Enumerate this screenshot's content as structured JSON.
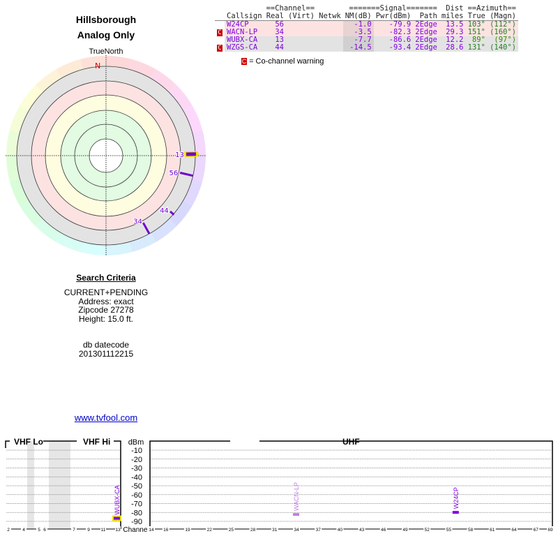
{
  "header": {
    "title": "Hillsborough",
    "subtitle": "Analog Only"
  },
  "polar": {
    "north_label": "TrueNorth",
    "n_marker": "N"
  },
  "table": {
    "group_channel": "==Channel==",
    "group_signal": "=======Signal=======",
    "group_dist": "Dist",
    "group_azimuth": "==Azimuth==",
    "columns": [
      "Callsign",
      "Real",
      "(Virt)",
      "Netwk",
      "NM(dB)",
      "Pwr(dBm)",
      "Path",
      "miles",
      "True",
      "(Magn)"
    ],
    "rows": [
      {
        "warn": "",
        "callsign": "W24CP",
        "real": "56",
        "virt": "",
        "netwk": "",
        "nm": "-1.0",
        "pwr": "-79.9",
        "path": "2Edge",
        "dist": "13.5",
        "true": "103°",
        "magn": "(112°)"
      },
      {
        "warn": "C",
        "callsign": "WACN-LP",
        "real": "34",
        "virt": "",
        "netwk": "",
        "nm": "-3.5",
        "pwr": "-82.3",
        "path": "2Edge",
        "dist": "29.3",
        "true": "151°",
        "magn": "(160°)"
      },
      {
        "warn": "",
        "callsign": "WUBX-CA",
        "real": "13",
        "virt": "",
        "netwk": "",
        "nm": "-7.7",
        "pwr": "-86.6",
        "path": "2Edge",
        "dist": "12.2",
        "true": "89°",
        "magn": "(97°)"
      },
      {
        "warn": "C",
        "callsign": "WZGS-CA",
        "real": "44",
        "virt": "",
        "netwk": "",
        "nm": "-14.5",
        "pwr": "-93.4",
        "path": "2Edge",
        "dist": "28.6",
        "true": "131°",
        "magn": "(140°)"
      }
    ],
    "legend_icon": "C",
    "legend_text": "= Co-channel warning"
  },
  "criteria": {
    "heading": "Search Criteria",
    "lines": [
      "CURRENT+PENDING",
      "Address: exact",
      "Zipcode 27278",
      "Height: 15.0 ft."
    ],
    "db_label": "db datecode",
    "db_value": "201301112215"
  },
  "link": "www.tvfool.com",
  "spectrum": {
    "vhf_lo": "VHF Lo",
    "vhf_hi": "VHF Hi",
    "uhf": "UHF",
    "dbm": "dBm",
    "channel": "Channel",
    "dbm_ticks": [
      "-10",
      "-20",
      "-30",
      "-40",
      "-50",
      "-60",
      "-70",
      "-80",
      "-90"
    ],
    "vhf_channels": [
      "2",
      "4",
      "5",
      "6",
      "7",
      "9",
      "11",
      "13"
    ],
    "uhf_channels": [
      "14",
      "16",
      "19",
      "22",
      "25",
      "28",
      "31",
      "34",
      "37",
      "40",
      "43",
      "46",
      "49",
      "52",
      "55",
      "58",
      "61",
      "64",
      "67",
      "69"
    ],
    "markers": [
      {
        "label": "WUBX-CA",
        "channel": 13,
        "dbm": -86.6,
        "color": "#8000e0"
      },
      {
        "label": "WACN-LP",
        "channel": 34,
        "dbm": -82.3,
        "color": "#c080e0"
      },
      {
        "label": "W24CP",
        "channel": 56,
        "dbm": -79.9,
        "color": "#8000e0"
      }
    ]
  },
  "stations_polar": [
    {
      "ch": "13",
      "az": 89,
      "r0": 115,
      "r1": 129,
      "hl": true
    },
    {
      "ch": "56",
      "az": 103,
      "r0": 109,
      "r1": 128
    },
    {
      "ch": "44",
      "az": 131,
      "r0": 122,
      "r1": 129
    },
    {
      "ch": "34",
      "az": 151,
      "r0": 110,
      "r1": 128
    }
  ],
  "colors": {
    "purple": "#7000d0",
    "warn": "#cc0000",
    "green": "#3a8a00"
  }
}
